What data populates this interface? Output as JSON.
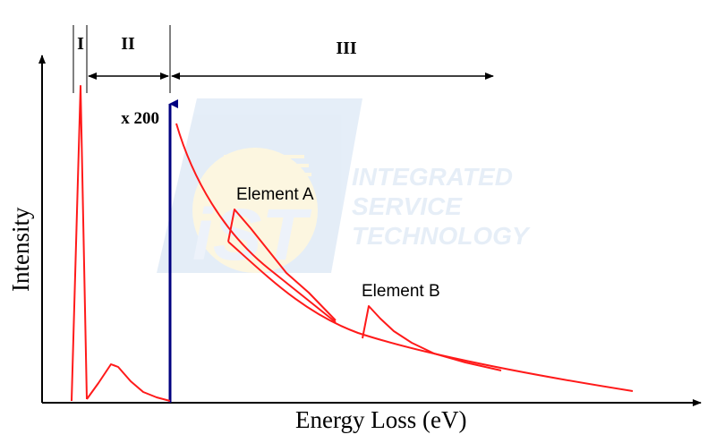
{
  "axes": {
    "x_label": "Energy Loss (eV)",
    "y_label": "Intensity"
  },
  "regions": [
    {
      "label": "I"
    },
    {
      "label": "II"
    },
    {
      "label": "III"
    }
  ],
  "magnification": "x 200",
  "annotations": {
    "element_a": "Element A",
    "element_b": "Element B"
  },
  "watermark": {
    "logo_text": "iST",
    "lines": [
      "INTEGRATED",
      "SERVICE",
      "TECHNOLOGY"
    ]
  },
  "colors": {
    "spectrum": "#ff1a1a",
    "marker": "#000080",
    "axis": "#000000",
    "watermark_blue": "#cfe0f2",
    "watermark_yellow": "#fbf0c8"
  }
}
